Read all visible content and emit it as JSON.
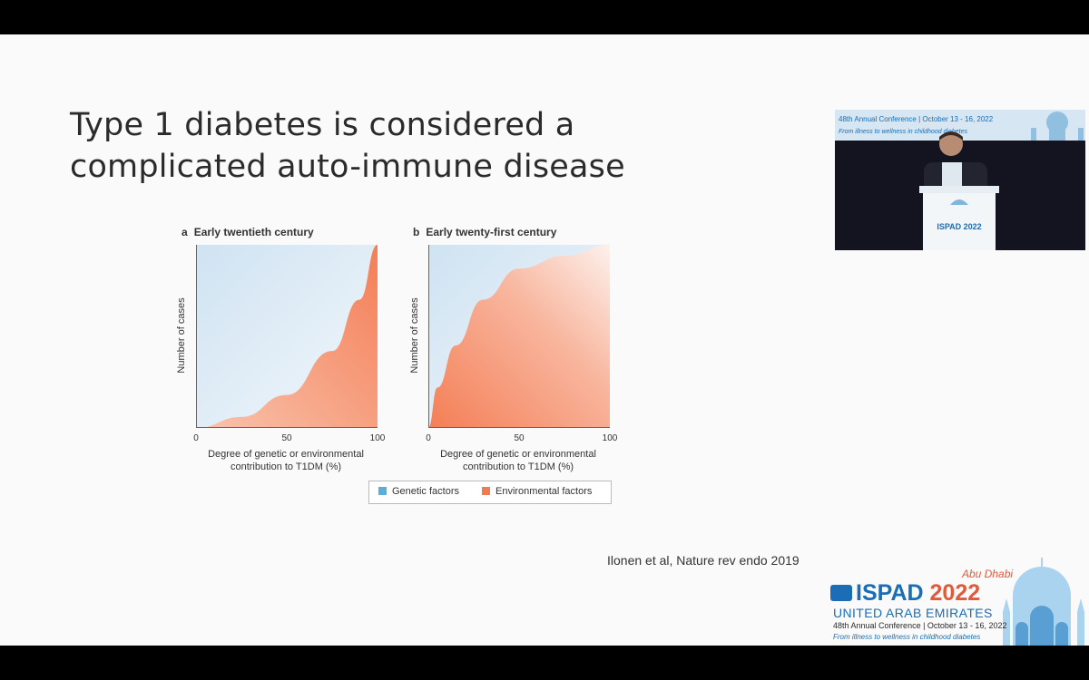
{
  "slide": {
    "title": "Type 1 diabetes is considered a complicated auto-immune disease",
    "citation": "Ilonen et al, Nature rev endo 2019"
  },
  "colors": {
    "genetic": "#5aaed8",
    "environmental": "#f07a52",
    "brand_blue": "#1b6db5",
    "brand_red": "#e05a3c"
  },
  "chart_data": [
    {
      "type": "area",
      "panel": "a",
      "title": "Early twentieth century",
      "xlabel": "Degree of genetic or environmental contribution to T1DM (%)",
      "ylabel": "Number of cases",
      "xticks": [
        "0",
        "50",
        "100"
      ],
      "xlim": [
        0,
        100
      ],
      "series": [
        {
          "name": "Genetic factors",
          "region": "above curve"
        },
        {
          "name": "Environmental factors",
          "region": "below curve",
          "x": [
            0,
            25,
            50,
            75,
            90,
            100
          ],
          "y": [
            0,
            6,
            18,
            42,
            70,
            100
          ]
        }
      ]
    },
    {
      "type": "area",
      "panel": "b",
      "title": "Early twenty-first century",
      "xlabel": "Degree of genetic or environmental contribution to T1DM (%)",
      "ylabel": "Number of cases",
      "xticks": [
        "0",
        "50",
        "100"
      ],
      "xlim": [
        0,
        100
      ],
      "series": [
        {
          "name": "Genetic factors",
          "region": "above curve"
        },
        {
          "name": "Environmental factors",
          "region": "below curve",
          "x": [
            0,
            5,
            15,
            30,
            50,
            75,
            100
          ],
          "y": [
            0,
            22,
            45,
            70,
            87,
            94,
            100
          ]
        }
      ]
    }
  ],
  "legend": {
    "genetic": "Genetic factors",
    "environmental": "Environmental factors"
  },
  "video": {
    "banner_line1": "48th Annual Conference | October 13 - 16, 2022",
    "banner_line2": "From illness to wellness in childhood diabetes",
    "podium_text": "ISPAD 2022"
  },
  "logo": {
    "location": "Abu Dhabi",
    "name": "ISPAD",
    "year": "2022",
    "country": "UNITED ARAB EMIRATES",
    "conference": "48th Annual Conference | October 13 - 16, 2022",
    "tagline": "From illness to wellness in childhood diabetes"
  }
}
